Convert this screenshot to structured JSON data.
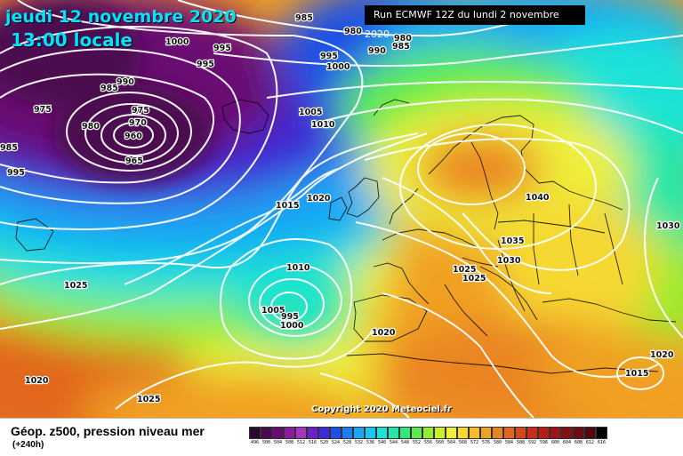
{
  "header": {
    "date": "jeudi 12 novembre 2020",
    "local_time": "13:00 locale",
    "run_info": "Run ECMWF 12Z du lundi 2 novembre 2020"
  },
  "copyright": "Copyright 2020 Meteociel.fr",
  "legend": {
    "title": "Géop. z500, pression niveau mer",
    "subtitle": "(+240h)",
    "scale": [
      {
        "v": "496",
        "c": "#2a0a2e"
      },
      {
        "v": "500",
        "c": "#4b0a4f"
      },
      {
        "v": "504",
        "c": "#6a0a73"
      },
      {
        "v": "508",
        "c": "#8a1c9a"
      },
      {
        "v": "512",
        "c": "#a733c1"
      },
      {
        "v": "516",
        "c": "#6c1fc8"
      },
      {
        "v": "520",
        "c": "#3d2ad6"
      },
      {
        "v": "524",
        "c": "#1f4fe6"
      },
      {
        "v": "528",
        "c": "#1a7ef0"
      },
      {
        "v": "532",
        "c": "#19a6f5"
      },
      {
        "v": "536",
        "c": "#1bc6f2"
      },
      {
        "v": "540",
        "c": "#1ee2d8"
      },
      {
        "v": "544",
        "c": "#22e7a8"
      },
      {
        "v": "548",
        "c": "#33e87a"
      },
      {
        "v": "552",
        "c": "#5ceb4c"
      },
      {
        "v": "556",
        "c": "#93ee32"
      },
      {
        "v": "560",
        "c": "#c8f02f"
      },
      {
        "v": "564",
        "c": "#eef03a"
      },
      {
        "v": "568",
        "c": "#f6d830"
      },
      {
        "v": "572",
        "c": "#f5bd2a"
      },
      {
        "v": "576",
        "c": "#f0a023"
      },
      {
        "v": "580",
        "c": "#ea8420"
      },
      {
        "v": "584",
        "c": "#e2661e"
      },
      {
        "v": "588",
        "c": "#d8481c"
      },
      {
        "v": "592",
        "c": "#c92e1a"
      },
      {
        "v": "596",
        "c": "#b61c18"
      },
      {
        "v": "600",
        "c": "#9e1416"
      },
      {
        "v": "604",
        "c": "#860f14"
      },
      {
        "v": "608",
        "c": "#6e0b12"
      },
      {
        "v": "612",
        "c": "#530810"
      },
      {
        "v": "616",
        "c": "#000000"
      }
    ]
  },
  "isobar_labels": [
    {
      "t": "985"
    },
    {
      "t": "1000"
    },
    {
      "t": "995"
    },
    {
      "t": "995"
    },
    {
      "t": "980"
    },
    {
      "t": "980"
    },
    {
      "t": "990"
    },
    {
      "t": "985"
    },
    {
      "t": "995"
    },
    {
      "t": "1000"
    },
    {
      "t": "985"
    },
    {
      "t": "990"
    },
    {
      "t": "975"
    },
    {
      "t": "975"
    },
    {
      "t": "980"
    },
    {
      "t": "970"
    },
    {
      "t": "960"
    },
    {
      "t": "965"
    },
    {
      "t": "985"
    },
    {
      "t": "995"
    },
    {
      "t": "1005"
    },
    {
      "t": "1010"
    },
    {
      "t": "1020"
    },
    {
      "t": "1015"
    },
    {
      "t": "1040"
    },
    {
      "t": "1035"
    },
    {
      "t": "1030"
    },
    {
      "t": "1025"
    },
    {
      "t": "1025"
    },
    {
      "t": "1030"
    },
    {
      "t": "1010"
    },
    {
      "t": "1025"
    },
    {
      "t": "1005"
    },
    {
      "t": "995"
    },
    {
      "t": "1000"
    },
    {
      "t": "1020"
    },
    {
      "t": "1020"
    },
    {
      "t": "1015"
    },
    {
      "t": "1020"
    },
    {
      "t": "1025"
    }
  ]
}
